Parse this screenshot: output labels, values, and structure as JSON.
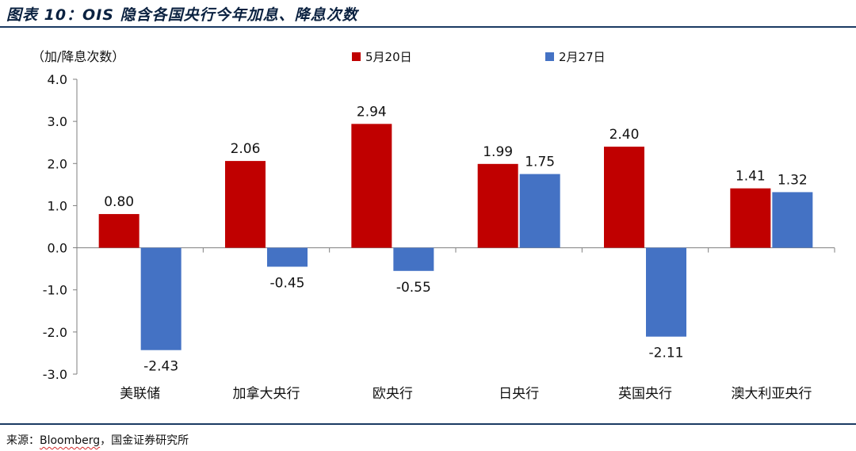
{
  "figure": {
    "title": "图表 10：OIS 隐含各国央行今年加息、降息次数",
    "source_prefix": "来源：",
    "source_brand": "Bloomberg",
    "source_rest": "，国金证券研究所"
  },
  "colors": {
    "series_1": "#C00000",
    "series_2": "#4472C4",
    "rule": "#1B3A63"
  },
  "chart_data": {
    "type": "bar",
    "title": "",
    "xlabel": "",
    "ylabel": "（加/降息次数）",
    "ylim": [
      -3.0,
      4.0
    ],
    "yticks": [
      "4.0",
      "3.0",
      "2.0",
      "1.0",
      "0.0",
      "-1.0",
      "-2.0",
      "-3.0"
    ],
    "grid": false,
    "legend_position": "top",
    "categories": [
      "美联储",
      "加拿大央行",
      "欧央行",
      "日央行",
      "英国央行",
      "澳大利亚央行"
    ],
    "series": [
      {
        "name": "5月20日",
        "values": [
          0.8,
          2.06,
          2.94,
          1.99,
          2.4,
          1.41
        ]
      },
      {
        "name": "2月27日",
        "values": [
          -2.43,
          -0.45,
          -0.55,
          1.75,
          -2.11,
          1.32
        ]
      }
    ]
  }
}
